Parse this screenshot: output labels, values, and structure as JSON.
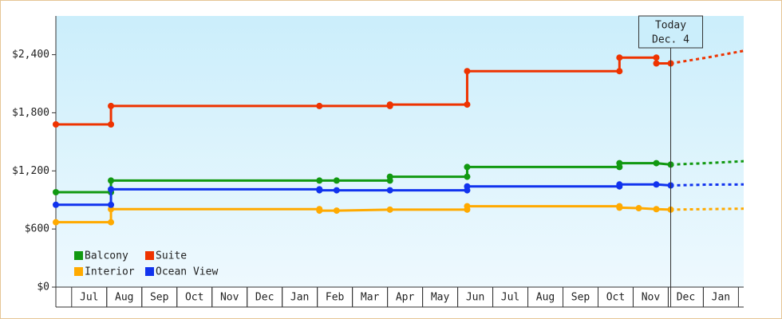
{
  "chart_data": {
    "type": "step-line",
    "categories": [
      "Jul",
      "Aug",
      "Sep",
      "Oct",
      "Nov",
      "Dec",
      "Jan",
      "Feb",
      "Mar",
      "Apr",
      "May",
      "Jun",
      "Jul",
      "Aug",
      "Sep",
      "Oct",
      "Nov",
      "Dec",
      "Jan"
    ],
    "xlim": [
      -0.45,
      19.15
    ],
    "ylim": [
      0,
      2800
    ],
    "yticks": [
      {
        "value": 0,
        "label": "$0"
      },
      {
        "value": 600,
        "label": "$600"
      },
      {
        "value": 1200,
        "label": "$1,200"
      },
      {
        "value": 1800,
        "label": "$1,800"
      },
      {
        "value": 2400,
        "label": "$2,400"
      }
    ],
    "today": {
      "x": 17.07,
      "label": "Today",
      "date": "Dec. 4"
    },
    "series": [
      {
        "name": "Balcony",
        "color": "#119911",
        "x": [
          -0.45,
          1.12,
          1.12,
          7.06,
          7.55,
          9.07,
          9.07,
          11.27,
          11.27,
          15.61,
          15.61,
          16.66,
          17.07
        ],
        "values": [
          980,
          980,
          1100,
          1100,
          1100,
          1100,
          1140,
          1140,
          1240,
          1240,
          1280,
          1280,
          1265
        ],
        "forecast_x": [
          17.07,
          18.1,
          19.15
        ],
        "forecast_values": [
          1265,
          1280,
          1300
        ]
      },
      {
        "name": "Suite",
        "color": "#ee3300",
        "x": [
          -0.45,
          1.12,
          1.12,
          7.06,
          9.07,
          9.07,
          11.27,
          11.27,
          15.61,
          15.61,
          16.66,
          16.66,
          17.07
        ],
        "values": [
          1680,
          1680,
          1870,
          1870,
          1870,
          1885,
          1885,
          2230,
          2230,
          2370,
          2370,
          2310,
          2310
        ],
        "forecast_x": [
          17.07,
          18.1,
          19.15
        ],
        "forecast_values": [
          2310,
          2370,
          2440
        ]
      },
      {
        "name": "Interior",
        "color": "#ffaa00",
        "x": [
          -0.45,
          1.12,
          1.12,
          7.06,
          7.06,
          7.55,
          9.07,
          11.27,
          11.27,
          15.61,
          15.61,
          16.16,
          16.66,
          17.07
        ],
        "values": [
          670,
          670,
          805,
          805,
          790,
          790,
          800,
          800,
          835,
          835,
          820,
          815,
          805,
          800
        ],
        "forecast_x": [
          17.07,
          18.1,
          19.15
        ],
        "forecast_values": [
          800,
          805,
          810
        ]
      },
      {
        "name": "Ocean View",
        "color": "#1133ee",
        "x": [
          -0.45,
          1.12,
          1.12,
          7.06,
          7.06,
          7.55,
          9.07,
          11.27,
          11.27,
          15.61,
          15.61,
          16.66,
          17.07
        ],
        "values": [
          850,
          850,
          1010,
          1010,
          1000,
          1000,
          1000,
          1000,
          1040,
          1040,
          1060,
          1060,
          1050
        ],
        "forecast_x": [
          17.07,
          18.1,
          19.15
        ],
        "forecast_values": [
          1050,
          1058,
          1060
        ]
      }
    ]
  }
}
